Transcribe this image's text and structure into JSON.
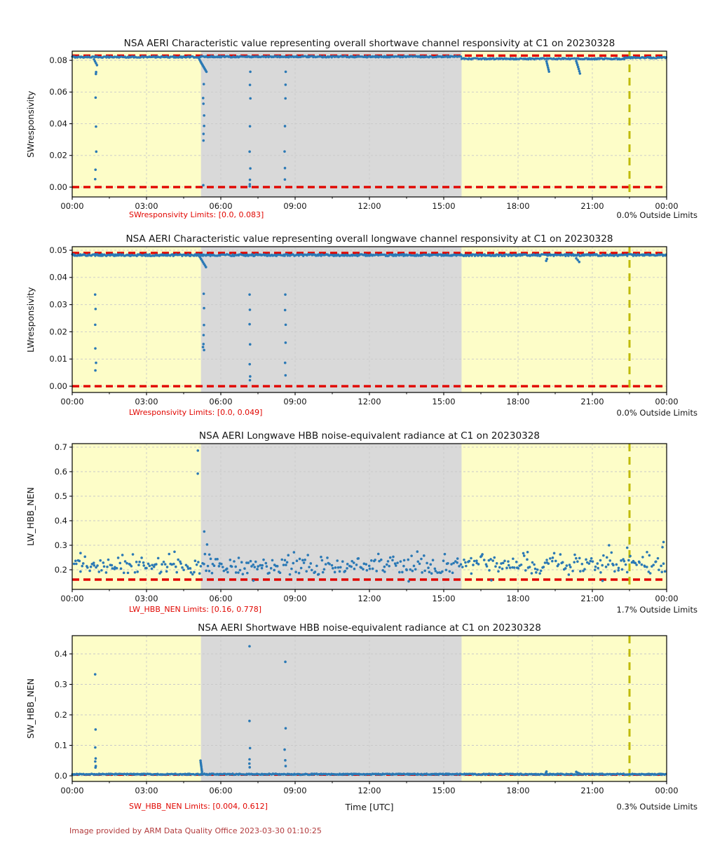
{
  "footer": {
    "xlabel": "Time [UTC]",
    "credit": "Image provided by ARM Data Quality Office 2023-03-30 01:10:25"
  },
  "colors": {
    "background_day": "#fdfdc8",
    "background_band": "#d9d9d9",
    "limit_line": "#e10600",
    "event_line": "#c0ba0a",
    "point": "#2b79b5",
    "grid": "#c9c9c9",
    "axis": "#000000",
    "limits_text": "#e10600",
    "credit_text": "#b23a3c"
  },
  "chart_data": {
    "type": "scatter",
    "x": {
      "label": "Time [UTC]",
      "range_hours": [
        0,
        24
      ],
      "tick_hours": [
        0,
        3,
        6,
        9,
        12,
        15,
        18,
        21,
        24
      ],
      "tick_labels": [
        "00:00",
        "03:00",
        "06:00",
        "09:00",
        "12:00",
        "15:00",
        "18:00",
        "21:00",
        "00:00"
      ],
      "minor_tick_step_hours": 1.5
    },
    "shading": {
      "gray_band_start_hour": 5.2,
      "gray_band_end_hour": 15.72
    },
    "event_line_hour": 22.5,
    "panels": [
      {
        "title": "NSA AERI Characteristic value representing overall shortwave channel responsivity at C1 on 20230328",
        "ylabel": "SWresponsivity",
        "ylim": [
          -0.0062,
          0.0858
        ],
        "yticks": [
          0.0,
          0.02,
          0.04,
          0.06,
          0.08
        ],
        "ytick_decimals": 2,
        "limits": [
          0.0,
          0.083
        ],
        "limits_label": "SWresponsivity Limits: [0.0, 0.083]",
        "outside_label": "0.0% Outside Limits",
        "line": {
          "step_hours": 0.03,
          "jitter": 0.00042,
          "segments": [
            [
              0,
              5.2,
              0.0821
            ],
            [
              5.2,
              15.72,
              0.0823
            ],
            [
              15.72,
              22.3,
              0.081
            ],
            [
              22.3,
              24,
              0.0817
            ]
          ]
        },
        "events": [
          {
            "t": 0.88,
            "spread": 0.12,
            "values": [
              0.0806,
              0.0794,
              0.0782,
              0.077
            ]
          },
          {
            "t": 0.95,
            "values": [
              0.0726,
              0.0714,
              0.0565,
              0.0382,
              0.0224,
              0.011,
              0.005
            ]
          },
          {
            "t": 5.12,
            "spread": 0.3,
            "values": [
              0.0812,
              0.0802,
              0.0793,
              0.0784,
              0.0776,
              0.0768,
              0.076,
              0.0752,
              0.0744,
              0.0736,
              0.0728
            ]
          },
          {
            "t": 5.3,
            "values": [
              0.065,
              0.0562,
              0.0526,
              0.0452,
              0.0386,
              0.0336,
              0.0294,
              0.0012
            ]
          },
          {
            "t": 7.17,
            "values": [
              0.0728,
              0.0645,
              0.056,
              0.0384,
              0.0224,
              0.0118,
              0.0046,
              0.0018,
              0.0005
            ]
          },
          {
            "t": 8.6,
            "values": [
              0.0728,
              0.0646,
              0.056,
              0.0385,
              0.0225,
              0.012,
              0.0048
            ]
          },
          {
            "t": 19.15,
            "spread": 0.1,
            "values": [
              0.0793,
              0.078,
              0.0768,
              0.0755,
              0.0742,
              0.0729
            ]
          },
          {
            "t": 20.35,
            "spread": 0.15,
            "values": [
              0.0795,
              0.0783,
              0.0771,
              0.0758,
              0.0745,
              0.0731,
              0.0717
            ]
          }
        ]
      },
      {
        "title": "NSA AERI Characteristic value representing overall longwave channel responsivity at C1 on 20230328",
        "ylabel": "LWresponsivity",
        "ylim": [
          -0.0023,
          0.0513
        ],
        "yticks": [
          0.0,
          0.01,
          0.02,
          0.03,
          0.04,
          0.05
        ],
        "ytick_decimals": 2,
        "limits": [
          0.0,
          0.049
        ],
        "limits_label": "LWresponsivity Limits: [0.0, 0.049]",
        "outside_label": "0.0% Outside Limits",
        "line": {
          "step_hours": 0.03,
          "jitter": 0.00035,
          "segments": [
            [
              0,
              24,
              0.0482
            ]
          ]
        },
        "events": [
          {
            "t": 0.95,
            "values": [
              0.0337,
              0.0284,
              0.0226,
              0.0139,
              0.0086,
              0.0058
            ]
          },
          {
            "t": 5.12,
            "spread": 0.28,
            "values": [
              0.0479,
              0.0474,
              0.0468,
              0.0462,
              0.0456,
              0.045,
              0.0444,
              0.0438
            ]
          },
          {
            "t": 5.3,
            "values": [
              0.034,
              0.0287,
              0.0225,
              0.0188,
              0.0155,
              0.0144,
              0.0133
            ]
          },
          {
            "t": 7.17,
            "values": [
              0.0337,
              0.0281,
              0.0228,
              0.0154,
              0.0081,
              0.0036,
              0.0022
            ]
          },
          {
            "t": 8.6,
            "values": [
              0.0337,
              0.028,
              0.0226,
              0.016,
              0.0086,
              0.004
            ]
          },
          {
            "t": 19.15,
            "values": [
              0.0468,
              0.0461
            ]
          },
          {
            "t": 20.35,
            "spread": 0.12,
            "values": [
              0.047,
              0.0464,
              0.0457
            ]
          }
        ]
      },
      {
        "title": "NSA AERI Longwave HBB noise-equivalent radiance at C1 on 20230328",
        "ylabel": "LW_HBB_NEN",
        "ylim": [
          0.12,
          0.7143
        ],
        "yticks": [
          0.2,
          0.3,
          0.4,
          0.5,
          0.6,
          0.7
        ],
        "ytick_decimals": 1,
        "limits": [
          0.16,
          0.778
        ],
        "limits_label": "LW_HBB_NEN Limits: [0.16, 0.778]",
        "outside_label": "1.7% Outside Limits",
        "noise": {
          "n": 430,
          "t0": 0.05,
          "t1": 23.95,
          "base": 0.18,
          "lin": 0.05,
          "quad": 0.048,
          "seed": 11
        },
        "events": [
          {
            "t": 0.35,
            "values": [
              0.268
            ]
          },
          {
            "t": 5.07,
            "values": [
              0.686,
              0.592
            ]
          },
          {
            "t": 5.35,
            "values": [
              0.356
            ]
          },
          {
            "t": 5.45,
            "values": [
              0.303
            ]
          },
          {
            "t": 5.55,
            "values": [
              0.262
            ]
          },
          {
            "t": 7.3,
            "values": [
              0.156
            ]
          },
          {
            "t": 13.6,
            "values": [
              0.153
            ]
          },
          {
            "t": 16.9,
            "values": [
              0.157
            ]
          },
          {
            "t": 18.4,
            "values": [
              0.272
            ]
          },
          {
            "t": 21.4,
            "values": [
              0.155
            ]
          },
          {
            "t": 21.7,
            "values": [
              0.3
            ]
          },
          {
            "t": 22.4,
            "values": [
              0.29
            ]
          },
          {
            "t": 23.2,
            "values": [
              0.272
            ]
          },
          {
            "t": 23.85,
            "values": [
              0.313,
              0.292
            ]
          }
        ]
      },
      {
        "title": "NSA AERI Shortwave HBB noise-equivalent radiance at C1 on 20230328",
        "ylabel": "SW_HBB_NEN",
        "ylim": [
          -0.0184,
          0.4598
        ],
        "yticks": [
          0.0,
          0.1,
          0.2,
          0.3,
          0.4
        ],
        "ytick_decimals": 1,
        "limits": [
          0.004,
          0.612
        ],
        "limits_label": "SW_HBB_NEN Limits: [0.004, 0.612]",
        "outside_label": "0.3% Outside Limits",
        "line": {
          "step_hours": 0.03,
          "jitter": 0.002,
          "segments": [
            [
              0,
              24,
              0.0052
            ]
          ]
        },
        "events": [
          {
            "t": 0.95,
            "values": [
              0.333,
              0.152,
              0.093,
              0.057,
              0.047,
              0.032,
              0.027
            ]
          },
          {
            "t": 5.18,
            "spread": 0.06,
            "values": [
              0.05,
              0.044,
              0.039,
              0.034,
              0.029,
              0.023,
              0.018,
              0.013
            ]
          },
          {
            "t": 7.17,
            "values": [
              0.425,
              0.18,
              0.091,
              0.054,
              0.04,
              0.028
            ]
          },
          {
            "t": 8.6,
            "values": [
              0.374,
              0.156,
              0.086,
              0.051,
              0.032
            ]
          },
          {
            "t": 19.15,
            "values": [
              0.014,
              0.01
            ]
          },
          {
            "t": 20.35,
            "spread": 0.12,
            "values": [
              0.013,
              0.01,
              0.008
            ]
          }
        ]
      }
    ]
  }
}
